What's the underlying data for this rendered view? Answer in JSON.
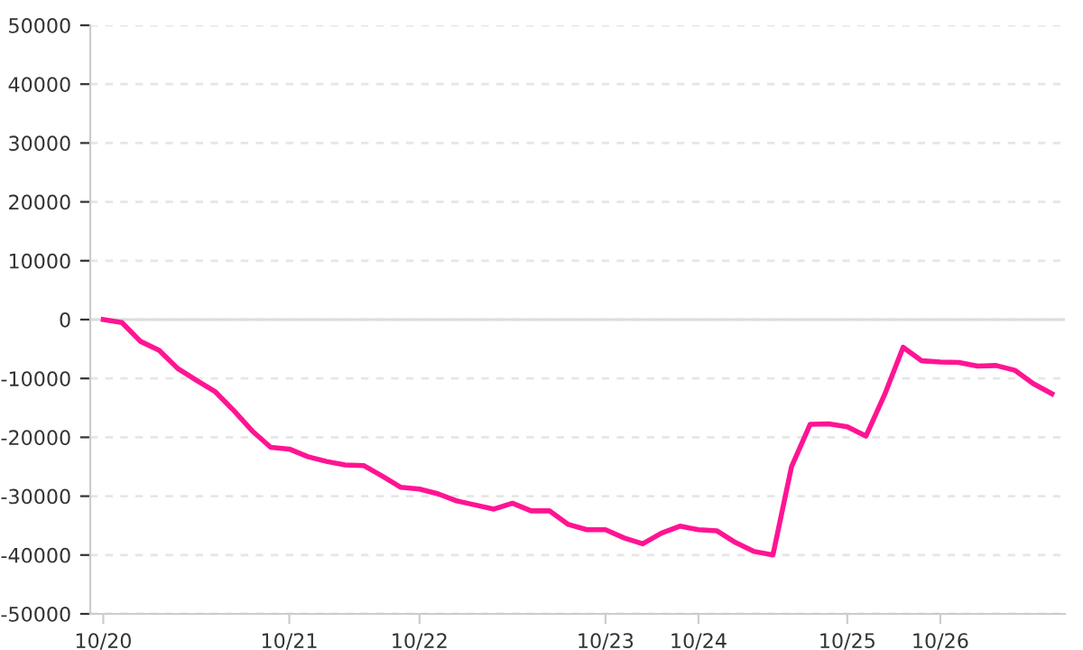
{
  "chart_data": {
    "type": "line",
    "categories": [
      "10/20",
      null,
      null,
      null,
      null,
      null,
      null,
      null,
      null,
      null,
      "10/21",
      null,
      null,
      null,
      null,
      null,
      null,
      "10/22",
      null,
      null,
      null,
      null,
      null,
      null,
      null,
      null,
      null,
      "10/23",
      null,
      null,
      null,
      null,
      "10/24",
      null,
      null,
      null,
      null,
      null,
      null,
      null,
      "10/25",
      null,
      null,
      null,
      null,
      "10/26",
      null,
      null,
      null,
      null,
      null,
      null
    ],
    "series": [
      {
        "color": "#ff1493",
        "values": [
          0,
          -500,
          -3700,
          -5200,
          -8300,
          -10300,
          -12200,
          -15400,
          -18900,
          -21700,
          -22000,
          -23300,
          -24100,
          -24700,
          -24800,
          -26600,
          -28500,
          -28800,
          -29600,
          -30800,
          -31500,
          -32200,
          -31200,
          -32500,
          -32500,
          -34800,
          -35700,
          -35700,
          -37100,
          -38100,
          -36300,
          -35100,
          -35700,
          -35900,
          -37900,
          -39400,
          -40000,
          -25000,
          -17800,
          -17700,
          -18200,
          -19800,
          -12800,
          -4700,
          -7000,
          -7200,
          -7300,
          -7900,
          -7800,
          -8600,
          -10900,
          -12600
        ]
      }
    ],
    "ylim": [
      -50000,
      50000
    ],
    "yticks": [
      -50000,
      -40000,
      -30000,
      -20000,
      -10000,
      0,
      10000,
      20000,
      30000,
      40000,
      50000
    ],
    "ref_lines": [
      {
        "axis": "y",
        "value": 0,
        "color": "#dddddd",
        "line_style": "solid"
      }
    ],
    "grid": "y",
    "line_style": "solid",
    "marker": "none"
  }
}
